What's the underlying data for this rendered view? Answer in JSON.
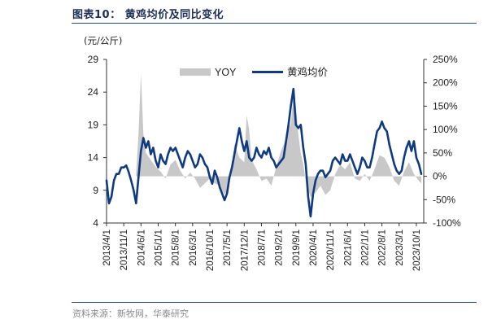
{
  "header": {
    "title": "图表10：  黄鸡均价及同比变化"
  },
  "unit_label": "(元/公斤)",
  "footer": {
    "source": "资料来源：新牧网，华泰研究"
  },
  "colors": {
    "price_line": "#0f3a80",
    "yoy_area": "#c8c8c8",
    "title": "#1c2f57"
  },
  "chart_data": {
    "type": "line",
    "title": "",
    "xlabel": "",
    "ylabel": "(元/公斤)",
    "y_left_lim": [
      4,
      29
    ],
    "y_left_ticks": [
      "29",
      "24",
      "19",
      "14",
      "9",
      "4"
    ],
    "y_right_lim": [
      -1.0,
      2.5
    ],
    "y_right_ticks": [
      "250%",
      "200%",
      "150%",
      "100%",
      "50%",
      "0%",
      "-50%",
      "-100%"
    ],
    "x_range": [
      "2013-04",
      "2024-01"
    ],
    "x_ticks": [
      "2013/4/1",
      "2013/11/1",
      "2014/6/1",
      "2015/1/1",
      "2015/8/1",
      "2016/3/1",
      "2016/10/1",
      "2017/5/1",
      "2017/12/1",
      "2018/7/1",
      "2019/2/1",
      "2019/9/1",
      "2020/4/1",
      "2020/11/1",
      "2021/6/1",
      "2022/1/1",
      "2022/8/1",
      "2023/3/1",
      "2023/10/1"
    ],
    "legend": {
      "position": "top-center",
      "entries": [
        "YOY",
        "黄鸡均价"
      ]
    },
    "grid": false,
    "series": [
      {
        "name": "YOY",
        "kind": "area",
        "axis": "right",
        "points": [
          [
            "2014-04",
            0.05
          ],
          [
            "2014-05",
            0.9
          ],
          [
            "2014-06",
            2.2
          ],
          [
            "2014-07",
            0.9
          ],
          [
            "2014-08",
            0.5
          ],
          [
            "2014-10",
            0.35
          ],
          [
            "2014-12",
            0.2
          ],
          [
            "2015-02",
            0.1
          ],
          [
            "2015-04",
            -0.05
          ],
          [
            "2015-06",
            0.25
          ],
          [
            "2015-08",
            0.35
          ],
          [
            "2015-10",
            0.12
          ],
          [
            "2015-12",
            -0.05
          ],
          [
            "2016-02",
            0.08
          ],
          [
            "2016-04",
            -0.05
          ],
          [
            "2016-06",
            -0.25
          ],
          [
            "2016-08",
            -0.15
          ],
          [
            "2016-10",
            -0.05
          ],
          [
            "2016-12",
            -0.15
          ],
          [
            "2017-02",
            -0.2
          ],
          [
            "2017-04",
            -0.4
          ],
          [
            "2017-05",
            -0.3
          ],
          [
            "2017-07",
            0.2
          ],
          [
            "2017-08",
            0.7
          ],
          [
            "2017-09",
            0.55
          ],
          [
            "2017-10",
            0.4
          ],
          [
            "2017-12",
            0.3
          ],
          [
            "2018-01",
            1.3
          ],
          [
            "2018-02",
            1.0
          ],
          [
            "2018-03",
            0.35
          ],
          [
            "2018-05",
            0.15
          ],
          [
            "2018-07",
            -0.1
          ],
          [
            "2018-09",
            -0.05
          ],
          [
            "2018-11",
            -0.2
          ],
          [
            "2019-01",
            0.2
          ],
          [
            "2019-03",
            0.55
          ],
          [
            "2019-05",
            0.8
          ],
          [
            "2019-07",
            1.15
          ],
          [
            "2019-08",
            1.75
          ],
          [
            "2019-09",
            1.5
          ],
          [
            "2019-10",
            0.9
          ],
          [
            "2019-11",
            0.5
          ],
          [
            "2019-12",
            0.25
          ],
          [
            "2020-01",
            -0.1
          ],
          [
            "2020-02",
            -0.3
          ],
          [
            "2020-03",
            -0.45
          ],
          [
            "2020-05",
            -0.35
          ],
          [
            "2020-07",
            -0.2
          ],
          [
            "2020-09",
            -0.4
          ],
          [
            "2020-11",
            -0.3
          ],
          [
            "2021-01",
            0.05
          ],
          [
            "2021-03",
            0.25
          ],
          [
            "2021-05",
            0.15
          ],
          [
            "2021-07",
            0.3
          ],
          [
            "2021-09",
            -0.05
          ],
          [
            "2021-11",
            -0.1
          ],
          [
            "2022-01",
            0.05
          ],
          [
            "2022-03",
            -0.1
          ],
          [
            "2022-05",
            0.15
          ],
          [
            "2022-07",
            0.45
          ],
          [
            "2022-09",
            0.4
          ],
          [
            "2022-11",
            0.2
          ],
          [
            "2023-01",
            -0.1
          ],
          [
            "2023-03",
            -0.2
          ],
          [
            "2023-05",
            0.1
          ],
          [
            "2023-07",
            0.3
          ],
          [
            "2023-09",
            0.05
          ],
          [
            "2023-11",
            -0.1
          ],
          [
            "2023-12",
            -0.15
          ]
        ]
      },
      {
        "name": "黄鸡均价",
        "kind": "line",
        "axis": "left",
        "points": [
          [
            "2013-04",
            10.5
          ],
          [
            "2013-05",
            7.0
          ],
          [
            "2013-06",
            8.0
          ],
          [
            "2013-07",
            10.5
          ],
          [
            "2013-08",
            11.5
          ],
          [
            "2013-09",
            11.5
          ],
          [
            "2013-10",
            12.5
          ],
          [
            "2013-11",
            12.5
          ],
          [
            "2013-12",
            12.8
          ],
          [
            "2014-01",
            11.8
          ],
          [
            "2014-02",
            10.5
          ],
          [
            "2014-03",
            9.0
          ],
          [
            "2014-04",
            7.0
          ],
          [
            "2014-05",
            11.0
          ],
          [
            "2014-06",
            15.0
          ],
          [
            "2014-07",
            17.0
          ],
          [
            "2014-08",
            15.5
          ],
          [
            "2014-09",
            16.5
          ],
          [
            "2014-10",
            14.5
          ],
          [
            "2014-11",
            15.5
          ],
          [
            "2014-12",
            13.5
          ],
          [
            "2015-01",
            12.5
          ],
          [
            "2015-02",
            14.5
          ],
          [
            "2015-03",
            13.5
          ],
          [
            "2015-04",
            13.0
          ],
          [
            "2015-05",
            14.5
          ],
          [
            "2015-06",
            15.5
          ],
          [
            "2015-07",
            15.0
          ],
          [
            "2015-08",
            15.5
          ],
          [
            "2015-09",
            14.5
          ],
          [
            "2015-10",
            13.5
          ],
          [
            "2015-11",
            12.5
          ],
          [
            "2015-12",
            14.0
          ],
          [
            "2016-01",
            15.0
          ],
          [
            "2016-02",
            14.5
          ],
          [
            "2016-03",
            13.5
          ],
          [
            "2016-04",
            12.5
          ],
          [
            "2016-05",
            13.0
          ],
          [
            "2016-06",
            14.5
          ],
          [
            "2016-07",
            14.0
          ],
          [
            "2016-08",
            13.0
          ],
          [
            "2016-09",
            12.5
          ],
          [
            "2016-10",
            11.0
          ],
          [
            "2016-11",
            10.0
          ],
          [
            "2016-12",
            12.0
          ],
          [
            "2017-01",
            11.0
          ],
          [
            "2017-02",
            9.5
          ],
          [
            "2017-03",
            8.5
          ],
          [
            "2017-04",
            7.5
          ],
          [
            "2017-05",
            8.5
          ],
          [
            "2017-06",
            11.0
          ],
          [
            "2017-07",
            12.5
          ],
          [
            "2017-08",
            14.5
          ],
          [
            "2017-09",
            16.5
          ],
          [
            "2017-10",
            18.5
          ],
          [
            "2017-11",
            16.5
          ],
          [
            "2017-12",
            15.0
          ],
          [
            "2018-01",
            16.5
          ],
          [
            "2018-02",
            14.0
          ],
          [
            "2018-03",
            13.5
          ],
          [
            "2018-04",
            14.0
          ],
          [
            "2018-05",
            15.5
          ],
          [
            "2018-06",
            14.5
          ],
          [
            "2018-07",
            14.0
          ],
          [
            "2018-08",
            15.0
          ],
          [
            "2018-09",
            14.5
          ],
          [
            "2018-10",
            15.5
          ],
          [
            "2018-11",
            14.0
          ],
          [
            "2018-12",
            13.5
          ],
          [
            "2019-01",
            12.5
          ],
          [
            "2019-02",
            13.0
          ],
          [
            "2019-03",
            13.5
          ],
          [
            "2019-04",
            14.0
          ],
          [
            "2019-05",
            16.5
          ],
          [
            "2019-06",
            19.0
          ],
          [
            "2019-07",
            22.0
          ],
          [
            "2019-08",
            24.5
          ],
          [
            "2019-09",
            19.0
          ],
          [
            "2019-10",
            18.5
          ],
          [
            "2019-11",
            19.0
          ],
          [
            "2019-12",
            15.5
          ],
          [
            "2020-01",
            13.0
          ],
          [
            "2020-02",
            8.0
          ],
          [
            "2020-03",
            5.0
          ],
          [
            "2020-04",
            8.5
          ],
          [
            "2020-05",
            10.5
          ],
          [
            "2020-06",
            11.5
          ],
          [
            "2020-07",
            12.0
          ],
          [
            "2020-08",
            12.0
          ],
          [
            "2020-09",
            11.0
          ],
          [
            "2020-10",
            11.5
          ],
          [
            "2020-11",
            12.0
          ],
          [
            "2020-12",
            13.5
          ],
          [
            "2021-01",
            14.0
          ],
          [
            "2021-02",
            13.5
          ],
          [
            "2021-03",
            13.0
          ],
          [
            "2021-04",
            14.5
          ],
          [
            "2021-05",
            13.5
          ],
          [
            "2021-06",
            13.5
          ],
          [
            "2021-07",
            14.5
          ],
          [
            "2021-08",
            13.5
          ],
          [
            "2021-09",
            12.5
          ],
          [
            "2021-10",
            11.5
          ],
          [
            "2021-11",
            12.5
          ],
          [
            "2021-12",
            14.0
          ],
          [
            "2022-01",
            13.5
          ],
          [
            "2022-02",
            12.5
          ],
          [
            "2022-03",
            12.5
          ],
          [
            "2022-04",
            14.0
          ],
          [
            "2022-05",
            16.0
          ],
          [
            "2022-06",
            18.0
          ],
          [
            "2022-07",
            18.5
          ],
          [
            "2022-08",
            19.5
          ],
          [
            "2022-09",
            18.5
          ],
          [
            "2022-10",
            18.0
          ],
          [
            "2022-11",
            16.0
          ],
          [
            "2022-12",
            14.5
          ],
          [
            "2023-01",
            13.0
          ],
          [
            "2023-02",
            12.0
          ],
          [
            "2023-03",
            11.5
          ],
          [
            "2023-04",
            12.0
          ],
          [
            "2023-05",
            14.0
          ],
          [
            "2023-06",
            15.5
          ],
          [
            "2023-07",
            16.5
          ],
          [
            "2023-08",
            15.0
          ],
          [
            "2023-09",
            16.5
          ],
          [
            "2023-10",
            14.0
          ],
          [
            "2023-11",
            13.0
          ],
          [
            "2023-12",
            11.5
          ]
        ]
      }
    ]
  }
}
